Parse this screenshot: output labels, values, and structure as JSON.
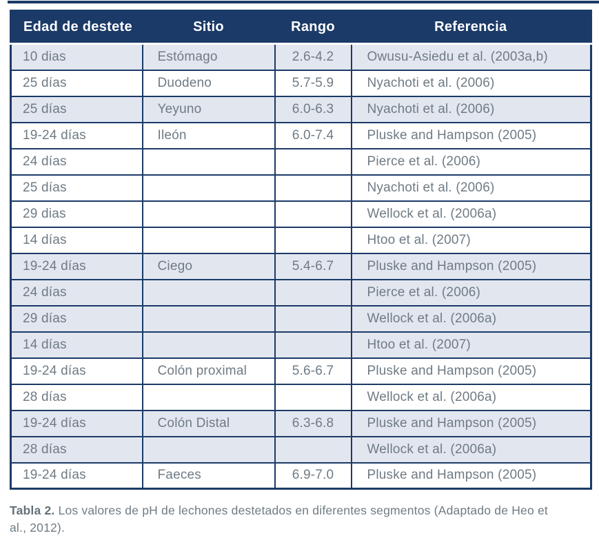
{
  "table": {
    "columns": [
      {
        "key": "edad",
        "label": "Edad de destete"
      },
      {
        "key": "sitio",
        "label": "Sitio"
      },
      {
        "key": "rango",
        "label": "Rango"
      },
      {
        "key": "referencia",
        "label": "Referencia"
      }
    ],
    "rows": [
      {
        "edad": "10 dias",
        "sitio": "Estómago",
        "rango": "2.6-4.2",
        "referencia": "Owusu-Asiedu et al. (2003a,b)",
        "shaded": true
      },
      {
        "edad": "25 días",
        "sitio": "Duodeno",
        "rango": "5.7-5.9",
        "referencia": "Nyachoti et al. (2006)",
        "shaded": false
      },
      {
        "edad": "25 días",
        "sitio": "Yeyuno",
        "rango": "6.0-6.3",
        "referencia": "Nyachoti et al. (2006)",
        "shaded": true
      },
      {
        "edad": "19-24 días",
        "sitio": "Ileón",
        "rango": "6.0-7.4",
        "referencia": "Pluske and Hampson (2005)",
        "shaded": false
      },
      {
        "edad": "24 días",
        "sitio": "",
        "rango": "",
        "referencia": "Pierce et al. (2006)",
        "shaded": false
      },
      {
        "edad": "25 días",
        "sitio": "",
        "rango": "",
        "referencia": "Nyachoti et al. (2006)",
        "shaded": false
      },
      {
        "edad": "29 dias",
        "sitio": "",
        "rango": "",
        "referencia": "Wellock et al. (2006a)",
        "shaded": false
      },
      {
        "edad": "14 días",
        "sitio": "",
        "rango": "",
        "referencia": "Htoo et al. (2007)",
        "shaded": false
      },
      {
        "edad": "19-24 días",
        "sitio": "Ciego",
        "rango": "5.4-6.7",
        "referencia": "Pluske and Hampson (2005)",
        "shaded": true
      },
      {
        "edad": "24 días",
        "sitio": "",
        "rango": "",
        "referencia": "Pierce et al. (2006)",
        "shaded": true
      },
      {
        "edad": "29 días",
        "sitio": "",
        "rango": "",
        "referencia": "Wellock et al. (2006a)",
        "shaded": true
      },
      {
        "edad": "14 días",
        "sitio": "",
        "rango": "",
        "referencia": "Htoo et al. (2007)",
        "shaded": true
      },
      {
        "edad": "19-24 días",
        "sitio": "Colón proximal",
        "rango": "5.6-6.7",
        "referencia": "Pluske and Hampson (2005)",
        "shaded": false
      },
      {
        "edad": "28 días",
        "sitio": "",
        "rango": "",
        "referencia": "Wellock et al. (2006a)",
        "shaded": false
      },
      {
        "edad": "19-24 días",
        "sitio": "Colón Distal",
        "rango": "6.3-6.8",
        "referencia": "Pluske and Hampson (2005)",
        "shaded": true
      },
      {
        "edad": "28 días",
        "sitio": "",
        "rango": "",
        "referencia": "Wellock et al. (2006a)",
        "shaded": true
      },
      {
        "edad": "19-24 días",
        "sitio": "Faeces",
        "rango": "6.9-7.0",
        "referencia": "Pluske and Hampson (2005)",
        "shaded": false
      }
    ]
  },
  "caption": {
    "label": "Tabla 2.",
    "text": " Los valores de pH de lechones destetados en diferentes segmentos (Adaptado de Heo et al., 2012)."
  },
  "colors": {
    "header_bg": "#1b3a67",
    "header_text": "#ffffff",
    "row_shaded_bg": "#e2e6ef",
    "row_white_bg": "#ffffff",
    "body_text": "#6f7b84",
    "grid_line": "#1b3a67"
  }
}
